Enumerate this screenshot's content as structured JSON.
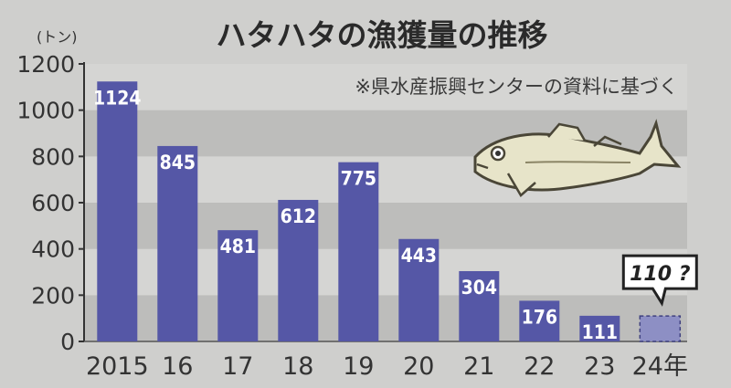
{
  "chart_data": {
    "type": "bar",
    "title": "ハタハタの漁獲量の推移",
    "source_note": "※県水産振興センターの資料に基づく",
    "unit_label": "(トン)",
    "categories": [
      "2015",
      "16",
      "17",
      "18",
      "19",
      "20",
      "21",
      "22",
      "23",
      "24年"
    ],
    "values": [
      1124,
      845,
      481,
      612,
      775,
      443,
      304,
      176,
      111,
      110
    ],
    "value_labels": [
      "1124",
      "845",
      "481",
      "612",
      "775",
      "443",
      "304",
      "176",
      "111",
      ""
    ],
    "estimated_last": true,
    "callout_label": "110 ?",
    "ylim": [
      0,
      1200
    ],
    "yticks": [
      0,
      200,
      400,
      600,
      800,
      1000,
      1200
    ],
    "ytick_labels": [
      "0",
      "200",
      "400",
      "600",
      "800",
      "1000",
      "1200"
    ],
    "grid": "horizontal bands",
    "colors": {
      "bar": "#5557a6",
      "bar_estimated": "#8d8fc4",
      "band_dark": "#bdbdbb",
      "band_light": "#d5d5d3",
      "fish": "#e7e4c9"
    }
  }
}
